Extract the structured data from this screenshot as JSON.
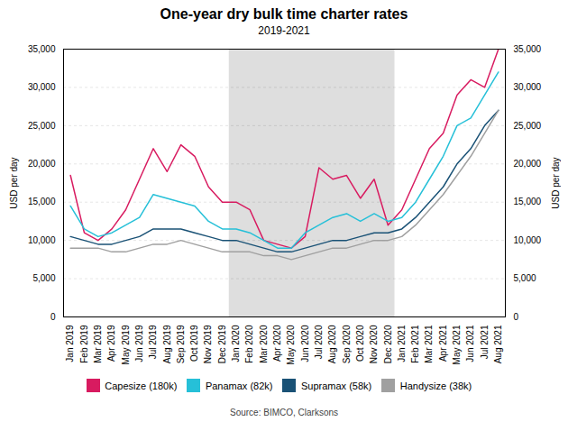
{
  "chart_data": {
    "type": "line",
    "title": "One-year dry bulk time charter rates",
    "subtitle": "2019-2021",
    "ylabel": "USD per day",
    "y2label": "USD per day",
    "source": "Source: BIMCO, Clarksons",
    "categories": [
      "Jan 2019",
      "Feb 2019",
      "Mar 2019",
      "Apr 2019",
      "May 2019",
      "Jun 2019",
      "Jul 2019",
      "Aug 2019",
      "Sep 2019",
      "Oct 2019",
      "Nov 2019",
      "Dec 2019",
      "Jan 2020",
      "Feb 2020",
      "Mar 2020",
      "Apr 2020",
      "May 2020",
      "Jun 2020",
      "Jul 2020",
      "Aug 2020",
      "Sep 2020",
      "Oct 2020",
      "Nov 2020",
      "Dec 2020",
      "Jan 2021",
      "Feb 2021",
      "Mar 2021",
      "Apr 2021",
      "May 2021",
      "Jun 2021",
      "Jul 2021",
      "Aug 2021"
    ],
    "series": [
      {
        "name": "Capesize (180k)",
        "color": "#d81b60",
        "values": [
          18500,
          11000,
          10000,
          11500,
          14000,
          18000,
          22000,
          19000,
          22500,
          21000,
          17000,
          15000,
          15000,
          14000,
          10000,
          9500,
          9000,
          10500,
          19500,
          18000,
          18500,
          15500,
          18000,
          12000,
          14000,
          18000,
          22000,
          24000,
          29000,
          31000,
          30000,
          35000
        ]
      },
      {
        "name": "Panamax (82k)",
        "color": "#26c0d8",
        "values": [
          14500,
          11500,
          10500,
          11000,
          12000,
          13000,
          16000,
          15500,
          15000,
          14500,
          12500,
          11500,
          11500,
          11000,
          10000,
          9000,
          9000,
          11000,
          12000,
          13000,
          13500,
          12500,
          13500,
          12500,
          13000,
          15000,
          18000,
          21000,
          25000,
          26000,
          29000,
          32000
        ]
      },
      {
        "name": "Supramax (58k)",
        "color": "#1a5276",
        "values": [
          10500,
          10000,
          9500,
          9500,
          10000,
          10500,
          11500,
          11500,
          11500,
          11000,
          10500,
          10000,
          10000,
          9500,
          9000,
          8500,
          8500,
          9000,
          9500,
          10000,
          10000,
          10500,
          11000,
          11000,
          11500,
          13000,
          15000,
          17000,
          20000,
          22000,
          25000,
          27000
        ]
      },
      {
        "name": "Handysize (38k)",
        "color": "#a0a0a0",
        "values": [
          9000,
          9000,
          9000,
          8500,
          8500,
          9000,
          9500,
          9500,
          10000,
          9500,
          9000,
          8500,
          8500,
          8500,
          8000,
          8000,
          7500,
          8000,
          8500,
          9000,
          9000,
          9500,
          10000,
          10000,
          10500,
          12000,
          14000,
          16000,
          18500,
          21000,
          24000,
          27000
        ]
      }
    ],
    "ylim": [
      0,
      35000
    ],
    "yticks": [
      0,
      {
        "value": 5000,
        "label": "5,000"
      },
      {
        "value": 10000,
        "label": "10,000"
      },
      {
        "value": 15000,
        "label": "15,000"
      },
      {
        "value": 20000,
        "label": "20,000"
      },
      {
        "value": 25000,
        "label": "25,000"
      },
      {
        "value": 30000,
        "label": "30,000"
      },
      {
        "value": 35000,
        "label": "35,000"
      }
    ],
    "y2lim": [
      0,
      35000
    ],
    "y2ticks": [
      0,
      {
        "value": 5000,
        "label": "5,000"
      },
      {
        "value": 10000,
        "label": "10,000"
      },
      {
        "value": 15000,
        "label": "15,000"
      },
      {
        "value": 20000,
        "label": "20,000"
      },
      {
        "value": 25000,
        "label": "25,000"
      },
      {
        "value": 30000,
        "label": "30,000"
      },
      {
        "value": 35000,
        "label": "35,000"
      }
    ],
    "grid": true,
    "legend": "bottom",
    "shaded": {
      "from": "Jan 2020",
      "to": "Dec 2020",
      "color": "#dedede"
    }
  }
}
